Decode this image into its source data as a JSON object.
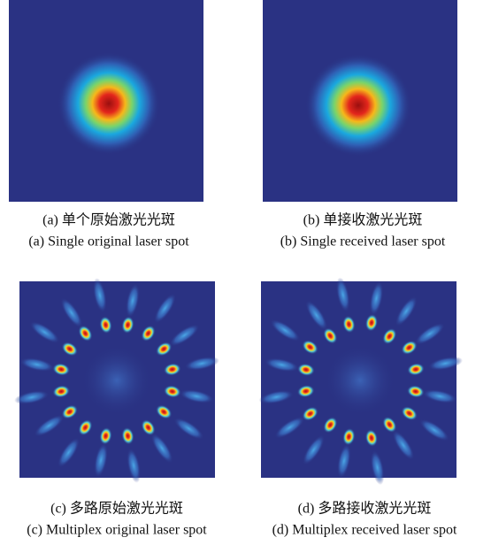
{
  "panels": [
    {
      "caption_cn": "(a) 单个原始激光光斑",
      "caption_en": "(a) Single original laser spot"
    },
    {
      "caption_cn": "(b) 单接收激光光斑",
      "caption_en": "(b) Single received laser spot"
    },
    {
      "caption_cn": "(c) 多路原始激光光斑",
      "caption_en": "(c) Multiplex original laser spot"
    },
    {
      "caption_cn": "(d) 多路接收激光光斑",
      "caption_en": "(d) Multiplex received laser spot"
    }
  ]
}
